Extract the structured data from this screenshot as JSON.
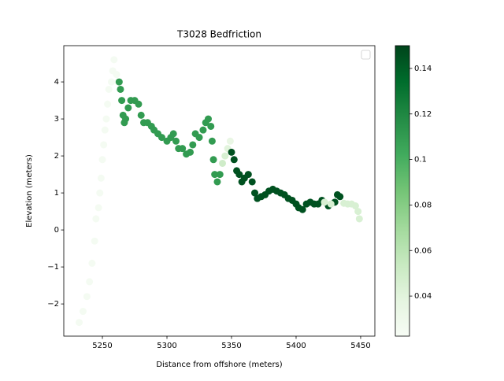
{
  "chart_data": {
    "type": "scatter",
    "title": "T3028 Bedfriction",
    "xlabel": "Distance from offshore (meters)",
    "ylabel": "Elevation (meters)",
    "x": [
      5232,
      5235,
      5238,
      5240,
      5242,
      5244,
      5245,
      5247,
      5248,
      5249,
      5250,
      5251,
      5252,
      5253,
      5254,
      5255,
      5257,
      5258,
      5259,
      5261,
      5262,
      5263,
      5264,
      5265,
      5266,
      5267,
      5268,
      5270,
      5272,
      5275,
      5278,
      5280,
      5282,
      5285,
      5288,
      5290,
      5293,
      5296,
      5300,
      5303,
      5305,
      5307,
      5309,
      5312,
      5315,
      5318,
      5320,
      5322,
      5325,
      5328,
      5330,
      5332,
      5334,
      5335,
      5336,
      5337,
      5339,
      5341,
      5343,
      5345,
      5347,
      5349,
      5350,
      5352,
      5354,
      5356,
      5358,
      5360,
      5363,
      5366,
      5368,
      5370,
      5373,
      5376,
      5379,
      5382,
      5385,
      5388,
      5391,
      5394,
      5397,
      5400,
      5402,
      5405,
      5408,
      5411,
      5414,
      5417,
      5420,
      5425,
      5430,
      5432,
      5434,
      5422,
      5427,
      5437,
      5440,
      5443,
      5446,
      5448,
      5449
    ],
    "y": [
      -2.5,
      -2.2,
      -1.8,
      -1.4,
      -0.9,
      -0.3,
      0.3,
      0.6,
      1.0,
      1.4,
      1.9,
      2.3,
      2.7,
      3.0,
      3.4,
      3.8,
      4.0,
      4.3,
      4.6,
      4.2,
      4.0,
      4.0,
      3.8,
      3.5,
      3.1,
      2.9,
      3.0,
      3.3,
      3.5,
      3.5,
      3.4,
      3.1,
      2.9,
      2.9,
      2.8,
      2.7,
      2.6,
      2.5,
      2.4,
      2.5,
      2.6,
      2.4,
      2.2,
      2.2,
      2.05,
      2.1,
      2.3,
      2.6,
      2.5,
      2.7,
      2.9,
      3.0,
      2.8,
      2.4,
      1.9,
      1.5,
      1.3,
      1.5,
      1.8,
      2.0,
      2.2,
      2.4,
      2.1,
      1.9,
      1.6,
      1.5,
      1.3,
      1.4,
      1.5,
      1.3,
      1.0,
      0.85,
      0.9,
      0.95,
      1.05,
      1.1,
      1.05,
      1.0,
      0.95,
      0.85,
      0.8,
      0.7,
      0.6,
      0.55,
      0.7,
      0.75,
      0.7,
      0.7,
      0.8,
      0.65,
      0.75,
      0.95,
      0.9,
      0.75,
      0.7,
      0.72,
      0.7,
      0.7,
      0.65,
      0.5,
      0.3
    ],
    "c": [
      0.025,
      0.025,
      0.025,
      0.025,
      0.025,
      0.025,
      0.025,
      0.025,
      0.025,
      0.025,
      0.025,
      0.025,
      0.025,
      0.025,
      0.025,
      0.025,
      0.025,
      0.025,
      0.025,
      0.025,
      0.025,
      0.11,
      0.11,
      0.11,
      0.11,
      0.11,
      0.11,
      0.11,
      0.11,
      0.11,
      0.11,
      0.11,
      0.11,
      0.11,
      0.11,
      0.11,
      0.11,
      0.11,
      0.11,
      0.11,
      0.11,
      0.11,
      0.11,
      0.11,
      0.11,
      0.11,
      0.11,
      0.11,
      0.11,
      0.11,
      0.11,
      0.11,
      0.11,
      0.11,
      0.11,
      0.11,
      0.11,
      0.11,
      0.05,
      0.045,
      0.04,
      0.035,
      0.145,
      0.145,
      0.145,
      0.145,
      0.145,
      0.145,
      0.145,
      0.145,
      0.145,
      0.145,
      0.145,
      0.145,
      0.145,
      0.145,
      0.145,
      0.145,
      0.145,
      0.145,
      0.145,
      0.145,
      0.145,
      0.145,
      0.145,
      0.145,
      0.145,
      0.145,
      0.145,
      0.145,
      0.145,
      0.145,
      0.145,
      0.045,
      0.045,
      0.045,
      0.045,
      0.045,
      0.045,
      0.045,
      0.045
    ],
    "colormap": "Greens",
    "xlim": [
      5220.1,
      5461
    ],
    "ylim": [
      -2.87,
      4.98
    ],
    "clim": [
      0.0224,
      0.15
    ],
    "xticks": [
      5250,
      5300,
      5350,
      5400,
      5450
    ],
    "yticks": [
      {
        "value": -2,
        "label": "−2"
      },
      {
        "value": -1,
        "label": "−1"
      },
      0,
      1,
      2,
      3,
      4
    ],
    "cticks": [
      0.04,
      0.06,
      0.08,
      0.1,
      0.12,
      0.14
    ],
    "legend": "upper right"
  }
}
